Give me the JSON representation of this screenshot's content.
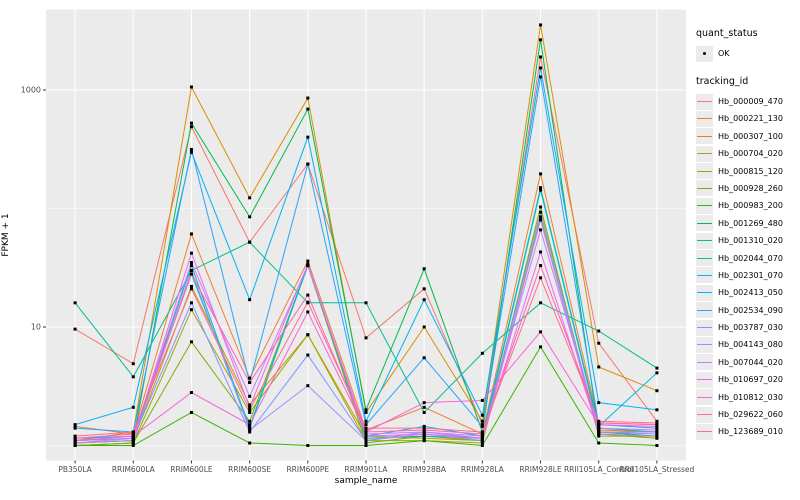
{
  "figure": {
    "background": "#FFFFFF",
    "panel_background": "#EBEBEB",
    "grid_color": "#FFFFFF",
    "tick_label_color": "#4D4D4D",
    "point_color": "#000000"
  },
  "axes": {
    "x_title": "sample_name",
    "y_title": "FPKM + 1",
    "y_major_breaks": [
      {
        "value": 1000,
        "label": "1000"
      },
      {
        "value": 10,
        "label": "10"
      }
    ],
    "y_minor_breaks": [
      100,
      1
    ]
  },
  "legend": {
    "quant_status_title": "quant_status",
    "quant_status_items": [
      {
        "label": "OK",
        "symbol": "point"
      }
    ],
    "tracking_id_title": "tracking_id"
  },
  "chart_data": {
    "type": "line",
    "title": "",
    "xlabel": "sample_name",
    "ylabel": "FPKM + 1",
    "y_scale": "log10",
    "ylim": [
      0.57,
      5000
    ],
    "grid": true,
    "legend_position": "right",
    "point_shape": "small black point (quant_status = OK for every point)",
    "categories": [
      "PB350LA",
      "RRIM600LA",
      "RRIM600LE",
      "RRIM600SE",
      "RRIM600PE",
      "RRIM901LA",
      "RRIM928BA",
      "RRIM928LA",
      "RRIM928LE",
      "RRII105LA_Control",
      "RRII105LA_Stressed"
    ],
    "series": [
      {
        "name": "Hb_000009_470",
        "color": "#F8766D",
        "values": [
          9.6,
          4.9,
          490,
          52,
          237,
          8.1,
          21,
          1.5,
          1900,
          7.3,
          1.6
        ]
      },
      {
        "name": "Hb_000221_130",
        "color": "#EA8331",
        "values": [
          1.45,
          1.25,
          61,
          3.7,
          36,
          1.35,
          2.1,
          1.25,
          196,
          1.55,
          1.5
        ]
      },
      {
        "name": "Hb_000307_100",
        "color": "#D89000",
        "values": [
          1.1,
          1.3,
          1060,
          123,
          855,
          1.9,
          10,
          1.6,
          3540,
          4.6,
          2.9
        ]
      },
      {
        "name": "Hb_000704_020",
        "color": "#C09B00",
        "values": [
          1.05,
          1.1,
          22,
          2.2,
          8.6,
          1.2,
          1.15,
          1.1,
          150,
          1.35,
          1.3
        ]
      },
      {
        "name": "Hb_000815_120",
        "color": "#A3A500",
        "values": [
          1.0,
          1.05,
          14,
          1.9,
          8.6,
          1.1,
          1.1,
          1.05,
          85,
          1.2,
          1.2
        ]
      },
      {
        "name": "Hb_000928_260",
        "color": "#7CAE00",
        "values": [
          1.0,
          1.05,
          7.5,
          1.6,
          33,
          1.05,
          1.2,
          1.1,
          103,
          1.25,
          1.15
        ]
      },
      {
        "name": "Hb_000983_200",
        "color": "#39B600",
        "values": [
          1.0,
          1.0,
          1.9,
          1.05,
          1.0,
          1.0,
          1.1,
          1.0,
          6.8,
          1.05,
          1.0
        ]
      },
      {
        "name": "Hb_001269_480",
        "color": "#00BB4E",
        "values": [
          1.05,
          1.1,
          525,
          85,
          690,
          2.0,
          31,
          1.3,
          2650,
          1.3,
          1.2
        ]
      },
      {
        "name": "Hb_001310_020",
        "color": "#00C087",
        "values": [
          16,
          3.8,
          30,
          52,
          16,
          16,
          1.9,
          6.0,
          16,
          9.25,
          4.5
        ]
      },
      {
        "name": "Hb_002044_070",
        "color": "#00C0B4",
        "values": [
          1.1,
          1.15,
          33,
          1.4,
          33,
          1.15,
          1.2,
          1.15,
          143,
          1.4,
          1.3
        ]
      },
      {
        "name": "Hb_002301_070",
        "color": "#00BCD9",
        "values": [
          1.15,
          1.2,
          28,
          1.45,
          33,
          1.2,
          1.45,
          1.2,
          147,
          1.45,
          4.1
        ]
      },
      {
        "name": "Hb_002413_050",
        "color": "#00B3F2",
        "values": [
          1.5,
          2.1,
          298,
          17,
          400,
          1.6,
          17,
          1.8,
          1535,
          2.3,
          2.0
        ]
      },
      {
        "name": "Hb_002534_090",
        "color": "#29A3FF",
        "values": [
          1.4,
          1.3,
          315,
          3.4,
          237,
          1.5,
          5.5,
          1.45,
          1290,
          1.5,
          1.4
        ]
      },
      {
        "name": "Hb_003787_030",
        "color": "#7C96FF",
        "values": [
          1.1,
          1.15,
          16,
          1.3,
          5.8,
          1.1,
          1.3,
          1.15,
          93,
          1.3,
          1.25
        ]
      },
      {
        "name": "Hb_004143_080",
        "color": "#A989FF",
        "values": [
          1.05,
          1.1,
          30,
          1.35,
          3.2,
          1.1,
          1.25,
          1.1,
          80,
          1.25,
          1.2
        ]
      },
      {
        "name": "Hb_007044_020",
        "color": "#CF78FF",
        "values": [
          1.1,
          1.2,
          35,
          2.6,
          33,
          1.25,
          1.3,
          1.2,
          66,
          1.4,
          1.35
        ]
      },
      {
        "name": "Hb_010697_020",
        "color": "#EB69F0",
        "values": [
          1.05,
          1.15,
          42,
          2.1,
          34,
          1.2,
          1.25,
          1.15,
          43,
          1.3,
          1.3
        ]
      },
      {
        "name": "Hb_010812_030",
        "color": "#FB61D7",
        "values": [
          1.1,
          1.2,
          2.8,
          1.5,
          13.4,
          1.3,
          2.3,
          2.4,
          9.1,
          1.5,
          1.45
        ]
      },
      {
        "name": "Hb_029622_060",
        "color": "#FF62B6",
        "values": [
          1.15,
          1.25,
          28,
          3.4,
          18.6,
          1.3,
          1.35,
          1.25,
          33,
          1.55,
          1.5
        ]
      },
      {
        "name": "Hb_123689_010",
        "color": "#FF6B94",
        "values": [
          1.2,
          1.3,
          21,
          2.0,
          16.2,
          1.4,
          1.4,
          1.3,
          26,
          1.6,
          1.55
        ]
      }
    ]
  }
}
